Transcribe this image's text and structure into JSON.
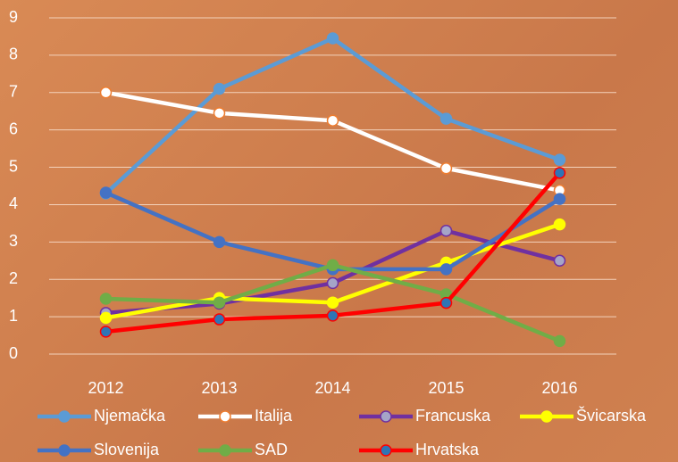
{
  "chart_data": {
    "type": "line",
    "categories": [
      "2012",
      "2013",
      "2014",
      "2015",
      "2016"
    ],
    "series": [
      {
        "name": "Njemačka",
        "color": "#5b9bd5",
        "marker_color": "#5b9bd5",
        "values": [
          4.3,
          7.1,
          8.45,
          6.3,
          5.2
        ]
      },
      {
        "name": "Italija",
        "color": "#ffffff",
        "marker_color": "#ed7d31",
        "values": [
          7.0,
          6.45,
          6.25,
          4.97,
          4.38
        ]
      },
      {
        "name": "Francuska",
        "color": "#7030a0",
        "marker_color": "#a5a5c8",
        "values": [
          1.1,
          1.35,
          1.9,
          3.3,
          2.5
        ]
      },
      {
        "name": "Švicarska",
        "color": "#ffff00",
        "marker_color": "#ffff00",
        "values": [
          0.97,
          1.5,
          1.38,
          2.45,
          3.47
        ]
      },
      {
        "name": "Slovenija",
        "color": "#4472c4",
        "marker_color": "#4472c4",
        "values": [
          4.32,
          3.0,
          2.27,
          2.27,
          4.15
        ]
      },
      {
        "name": "SAD",
        "color": "#70ad47",
        "marker_color": "#70ad47",
        "values": [
          1.48,
          1.38,
          2.38,
          1.6,
          0.35
        ]
      },
      {
        "name": "Hrvatska",
        "color": "#ff0000",
        "marker_color": "#2e75b6",
        "values": [
          0.6,
          0.93,
          1.03,
          1.37,
          4.85
        ]
      }
    ],
    "ylim": [
      0,
      9
    ],
    "yticks": [
      0,
      1,
      2,
      3,
      4,
      5,
      6,
      7,
      8,
      9
    ],
    "grid": true,
    "legend": "bottom"
  }
}
